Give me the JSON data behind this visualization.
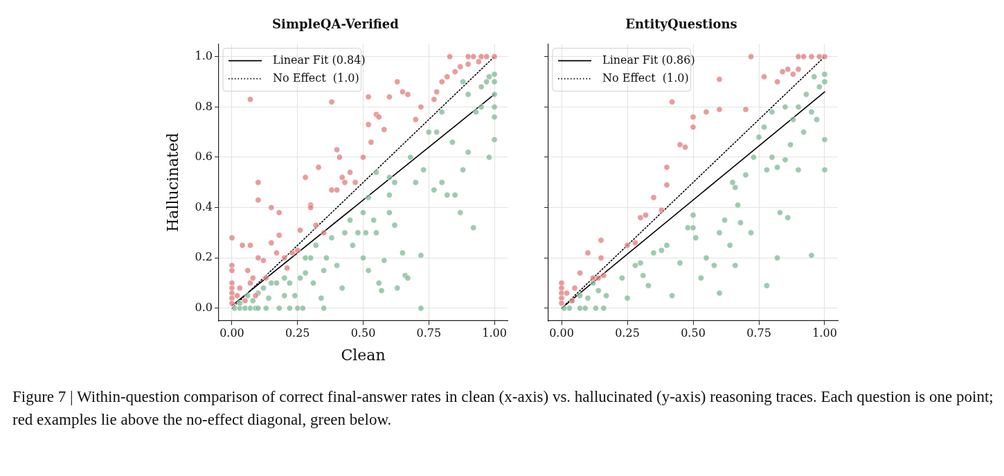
{
  "chart_data": [
    {
      "type": "scatter",
      "title": "SimpleQA-Verified",
      "xlabel": "Clean",
      "ylabel": "Hallucinated",
      "xlim": [
        -0.05,
        1.05
      ],
      "ylim": [
        -0.05,
        1.05
      ],
      "xticks": [
        {
          "value": 0,
          "label": "0.00"
        },
        {
          "value": 0.25,
          "label": "0.25"
        },
        {
          "value": 0.5,
          "label": "0.50"
        },
        {
          "value": 0.75,
          "label": "0.75"
        },
        {
          "value": 1,
          "label": "1.00"
        }
      ],
      "yticks": [
        {
          "value": 0,
          "label": "0.0"
        },
        {
          "value": 0.2,
          "label": "0.2"
        },
        {
          "value": 0.4,
          "label": "0.4"
        },
        {
          "value": 0.6,
          "label": "0.6"
        },
        {
          "value": 0.8,
          "label": "0.8"
        },
        {
          "value": 1,
          "label": "1.0"
        }
      ],
      "grid": true,
      "legend": "top left",
      "annotations": [
        "Figure 7 | Within-question comparison of correct final-answer rates in clean (x-axis) vs. hallucinated (y-axis) reasoning traces. Each question is one point; red examples lie above the no-effect diagonal, green below."
      ],
      "series": [
        {
          "marker": "circle",
          "color": "#e07b7b",
          "x": [
            0,
            0,
            0,
            0,
            0,
            0,
            0,
            0,
            0.02,
            0.03,
            0.04,
            0.05,
            0.06,
            0.07,
            0.07,
            0.08,
            0.09,
            0.1,
            0.1,
            0.1,
            0.12,
            0.13,
            0.15,
            0.15,
            0.17,
            0.18,
            0.18,
            0.2,
            0.21,
            0.23,
            0.25,
            0.26,
            0.28,
            0.3,
            0.3,
            0.32,
            0.33,
            0.35,
            0.38,
            0.4,
            0.4,
            0.41,
            0.42,
            0.43,
            0.45,
            0.47,
            0.5,
            0.52,
            0.53,
            0.55,
            0.56,
            0.58,
            0.6,
            0.63,
            0.65,
            0.67,
            0.7,
            0.72,
            0.77,
            0.78,
            0.8,
            0.82,
            0.83,
            0.85,
            0.87,
            0.9,
            0.92,
            0.95,
            0.97,
            1,
            0.9,
            0.94,
            0.38,
            0.07,
            0.52
          ],
          "values": [
            0.28,
            0.17,
            0.15,
            0.1,
            0.08,
            0.06,
            0.04,
            0.02,
            0.05,
            0.08,
            0.25,
            0.03,
            0.15,
            0.25,
            0.1,
            0.12,
            0.05,
            0.2,
            0.5,
            0.43,
            0.19,
            0.12,
            0.26,
            0.4,
            0.22,
            0.38,
            0.29,
            0.2,
            0.16,
            0.22,
            0.23,
            0.31,
            0.52,
            0.41,
            0.4,
            0.33,
            0.56,
            0.3,
            0.47,
            0.47,
            0.63,
            0.6,
            0.52,
            0.5,
            0.54,
            0.5,
            0.6,
            0.73,
            0.66,
            0.77,
            0.76,
            0.71,
            0.84,
            0.9,
            0.86,
            0.85,
            0.75,
            0.8,
            0.83,
            0.86,
            0.9,
            0.92,
            1,
            0.94,
            0.96,
            1,
            1,
            1,
            1,
            1,
            0.97,
            0.98,
            0.82,
            0.83,
            0.84
          ]
        },
        {
          "marker": "circle",
          "color": "#7fb896",
          "x": [
            0.01,
            0.03,
            0.05,
            0.07,
            0.09,
            0.1,
            0.13,
            0.18,
            0.22,
            0.25,
            0.27,
            0.35,
            0.72,
            0.03,
            0.06,
            0.08,
            0.1,
            0.12,
            0.14,
            0.15,
            0.17,
            0.2,
            0.2,
            0.22,
            0.24,
            0.26,
            0.28,
            0.28,
            0.3,
            0.31,
            0.32,
            0.34,
            0.35,
            0.36,
            0.38,
            0.4,
            0.42,
            0.43,
            0.45,
            0.46,
            0.48,
            0.5,
            0.5,
            0.51,
            0.52,
            0.54,
            0.55,
            0.56,
            0.57,
            0.58,
            0.6,
            0.6,
            0.62,
            0.63,
            0.65,
            0.66,
            0.67,
            0.68,
            0.7,
            0.72,
            0.73,
            0.75,
            0.77,
            0.8,
            0.82,
            0.84,
            0.85,
            0.87,
            0.88,
            0.9,
            0.92,
            0.93,
            0.95,
            0.97,
            0.98,
            1,
            1,
            1,
            1,
            1,
            1,
            0.98,
            0.95,
            0.9,
            0.88,
            0.8,
            0.78,
            0.6,
            0.55,
            0.52,
            0.62
          ],
          "values": [
            0,
            0,
            0,
            0,
            0,
            0,
            0,
            0,
            0,
            0,
            0,
            0,
            0,
            0.02,
            0.05,
            0.03,
            0.06,
            0.08,
            0.04,
            0.1,
            0.1,
            0.05,
            0.12,
            0.1,
            0.05,
            0.12,
            0.14,
            0.2,
            0.2,
            0.1,
            0.25,
            0.04,
            0.15,
            0.2,
            0.28,
            0.17,
            0.08,
            0.3,
            0.35,
            0.25,
            0.3,
            0.38,
            0.2,
            0.3,
            0.15,
            0.35,
            0.3,
            0.1,
            0.07,
            0.19,
            0.38,
            0.45,
            0.33,
            0.08,
            0.22,
            0.13,
            0.12,
            0.6,
            0.5,
            0.21,
            0.55,
            0.7,
            0.47,
            0.5,
            0.45,
            0.66,
            0.45,
            0.38,
            0.55,
            0.62,
            0.32,
            0.78,
            0.8,
            0.9,
            0.6,
            0.67,
            0.76,
            0.8,
            0.85,
            0.9,
            0.93,
            0.92,
            0.88,
            0.85,
            0.9,
            0.78,
            0.7,
            0.52,
            0.54,
            0.44,
            0.5
          ]
        },
        {
          "type": "line",
          "marker": "none",
          "name": "Linear Fit (0.84)",
          "color": "#000000",
          "line_style": "solid",
          "x": [
            0,
            1
          ],
          "values": [
            0.01,
            0.85
          ]
        },
        {
          "type": "line",
          "marker": "none",
          "name": "No Effect  (1.0)",
          "color": "#000000",
          "line_style": "dotted",
          "x": [
            0,
            1
          ],
          "values": [
            0,
            1
          ]
        }
      ]
    },
    {
      "type": "scatter",
      "title": "EntityQuestions",
      "xlim": [
        -0.05,
        1.05
      ],
      "ylim": [
        -0.05,
        1.05
      ],
      "tick_labels": "x",
      "xticks": [
        {
          "value": 0,
          "label": "0.00"
        },
        {
          "value": 0.25,
          "label": "0.25"
        },
        {
          "value": 0.5,
          "label": "0.50"
        },
        {
          "value": 0.75,
          "label": "0.75"
        },
        {
          "value": 1,
          "label": "1.00"
        }
      ],
      "yticks": [
        {
          "value": 0,
          "label": null
        },
        {
          "value": 0.2,
          "label": null
        },
        {
          "value": 0.4,
          "label": null
        },
        {
          "value": 0.6,
          "label": null
        },
        {
          "value": 0.8,
          "label": null
        },
        {
          "value": 1,
          "label": null
        }
      ],
      "grid": true,
      "legend": "top left",
      "series": [
        {
          "marker": "circle",
          "color": "#e07b7b",
          "x": [
            0,
            0,
            0,
            0,
            0,
            0.02,
            0.04,
            0.05,
            0.07,
            0.1,
            0.12,
            0.14,
            0.15,
            0.15,
            0.16,
            0.25,
            0.28,
            0.3,
            0.32,
            0.35,
            0.38,
            0.4,
            0.4,
            0.45,
            0.47,
            0.5,
            0.5,
            0.55,
            0.6,
            0.6,
            0.7,
            0.77,
            0.82,
            0.84,
            0.86,
            0.88,
            0.9,
            0.92,
            0.95,
            0.98,
            1,
            0.72,
            0.42,
            0.9
          ],
          "values": [
            0.1,
            0.08,
            0.06,
            0.04,
            0.02,
            0.06,
            0.03,
            0.08,
            0.14,
            0.22,
            0.12,
            0.12,
            0.2,
            0.27,
            0.13,
            0.25,
            0.26,
            0.36,
            0.37,
            0.44,
            0.39,
            0.49,
            0.56,
            0.65,
            0.64,
            0.72,
            0.76,
            0.78,
            0.79,
            0.91,
            0.79,
            0.92,
            0.9,
            0.94,
            0.95,
            0.93,
            1,
            1,
            1,
            1,
            1,
            1,
            0.82,
            0.95
          ]
        },
        {
          "marker": "circle",
          "color": "#7fb896",
          "x": [
            0.01,
            0.03,
            0.07,
            0.09,
            0.13,
            0.16,
            0.04,
            0.07,
            0.1,
            0.12,
            0.14,
            0.17,
            0.23,
            0.25,
            0.28,
            0.3,
            0.31,
            0.33,
            0.35,
            0.38,
            0.4,
            0.42,
            0.45,
            0.48,
            0.5,
            0.5,
            0.51,
            0.53,
            0.55,
            0.58,
            0.6,
            0.6,
            0.62,
            0.64,
            0.66,
            0.67,
            0.68,
            0.7,
            0.72,
            0.73,
            0.75,
            0.78,
            0.78,
            0.8,
            0.82,
            0.82,
            0.83,
            0.85,
            0.86,
            0.87,
            0.88,
            0.9,
            0.92,
            0.93,
            0.95,
            0.95,
            0.97,
            1,
            1,
            1,
            1,
            0.98,
            0.96,
            0.9,
            0.85,
            0.8,
            0.77,
            0.65,
            0.66
          ],
          "values": [
            0,
            0,
            0,
            0,
            0,
            0,
            0.03,
            0.05,
            0.04,
            0.1,
            0.07,
            0.05,
            0.12,
            0.04,
            0.17,
            0.18,
            0.13,
            0.09,
            0.22,
            0.23,
            0.25,
            0.05,
            0.18,
            0.32,
            0.37,
            0.32,
            0.28,
            0.12,
            0.2,
            0.17,
            0.3,
            0.06,
            0.35,
            0.25,
            0.17,
            0.41,
            0.34,
            0.53,
            0.3,
            0.6,
            0.68,
            0.09,
            0.55,
            0.6,
            0.2,
            0.56,
            0.38,
            0.59,
            0.36,
            0.65,
            0.75,
            0.55,
            0.7,
            0.85,
            0.21,
            0.78,
            0.75,
            0.67,
            0.55,
            0.9,
            0.93,
            0.88,
            0.92,
            0.8,
            0.8,
            0.78,
            0.72,
            0.5,
            0.48
          ]
        },
        {
          "type": "line",
          "marker": "none",
          "name": "Linear Fit (0.86)",
          "color": "#000000",
          "line_style": "solid",
          "x": [
            0,
            1
          ],
          "values": [
            0,
            0.86
          ]
        },
        {
          "type": "line",
          "marker": "none",
          "name": "No Effect  (1.0)",
          "color": "#000000",
          "line_style": "dotted",
          "x": [
            0,
            1
          ],
          "values": [
            0,
            1
          ]
        }
      ]
    }
  ]
}
